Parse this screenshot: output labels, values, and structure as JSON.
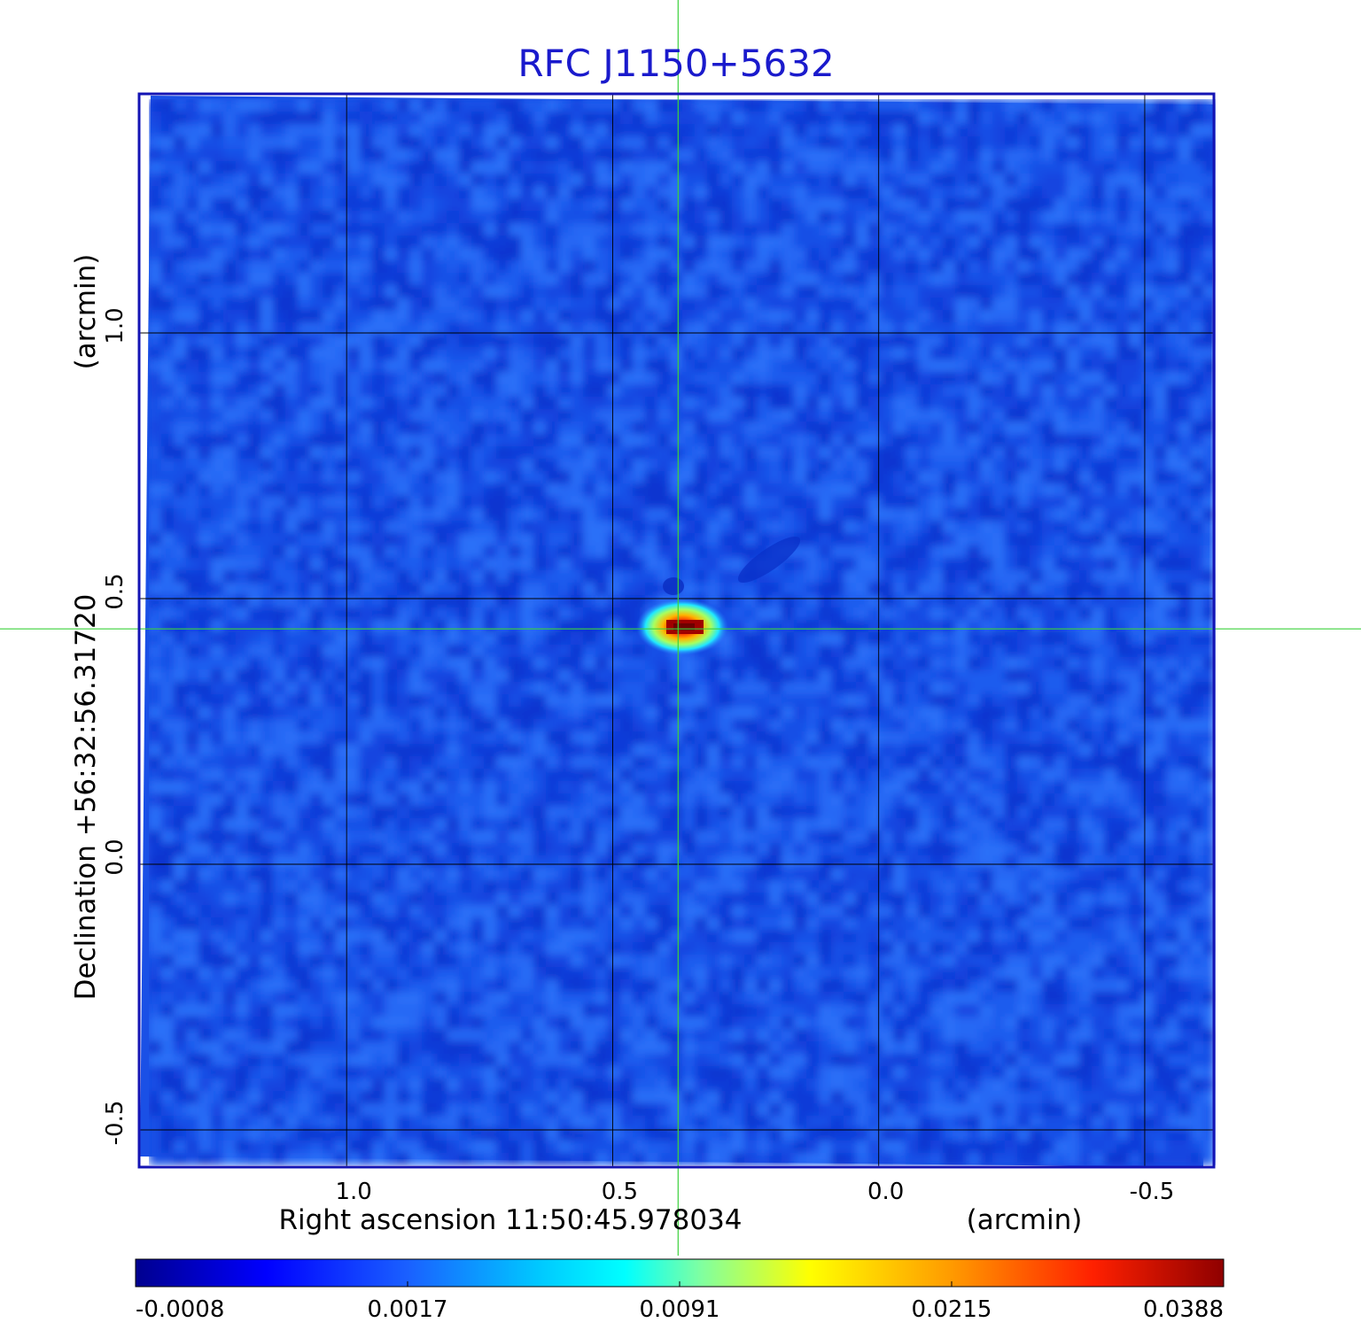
{
  "chart_data": {
    "type": "heatmap",
    "title": "RFC J1150+5632",
    "xlabel": "Right ascension  11:50:45.978034",
    "xunit": "(arcmin)",
    "ylabel": "Declination  +56:32:56.31720",
    "yunit": "(arcmin)",
    "x_axis_reversed": true,
    "xlim": [
      1.39,
      -0.63
    ],
    "ylim": [
      -0.57,
      1.45
    ],
    "xticks": [
      {
        "value": 1.0,
        "label": "1.0"
      },
      {
        "value": 0.5,
        "label": "0.5"
      },
      {
        "value": 0.0,
        "label": "0.0"
      },
      {
        "value": -0.5,
        "label": "-0.5"
      }
    ],
    "yticks": [
      {
        "value": 1.0,
        "label": "1.0"
      },
      {
        "value": 0.5,
        "label": "0.5"
      },
      {
        "value": 0.0,
        "label": "0.0"
      },
      {
        "value": -0.5,
        "label": "-0.5"
      }
    ],
    "grid": true,
    "crosshair": {
      "x": 0.377,
      "y": 0.443,
      "color": "#3cd23c"
    },
    "source_peak": {
      "x": 0.37,
      "y": 0.443,
      "value": 0.0388
    },
    "colorbar": {
      "colormap": "jet",
      "placement": "bottom",
      "ticks": [
        "-0.0008",
        "0.0017",
        "0.0091",
        "0.0215",
        "0.0388"
      ]
    },
    "colors": {
      "title": "#1a1acc",
      "frame": "#1414b4",
      "background_noise": "#1a50e6"
    }
  }
}
